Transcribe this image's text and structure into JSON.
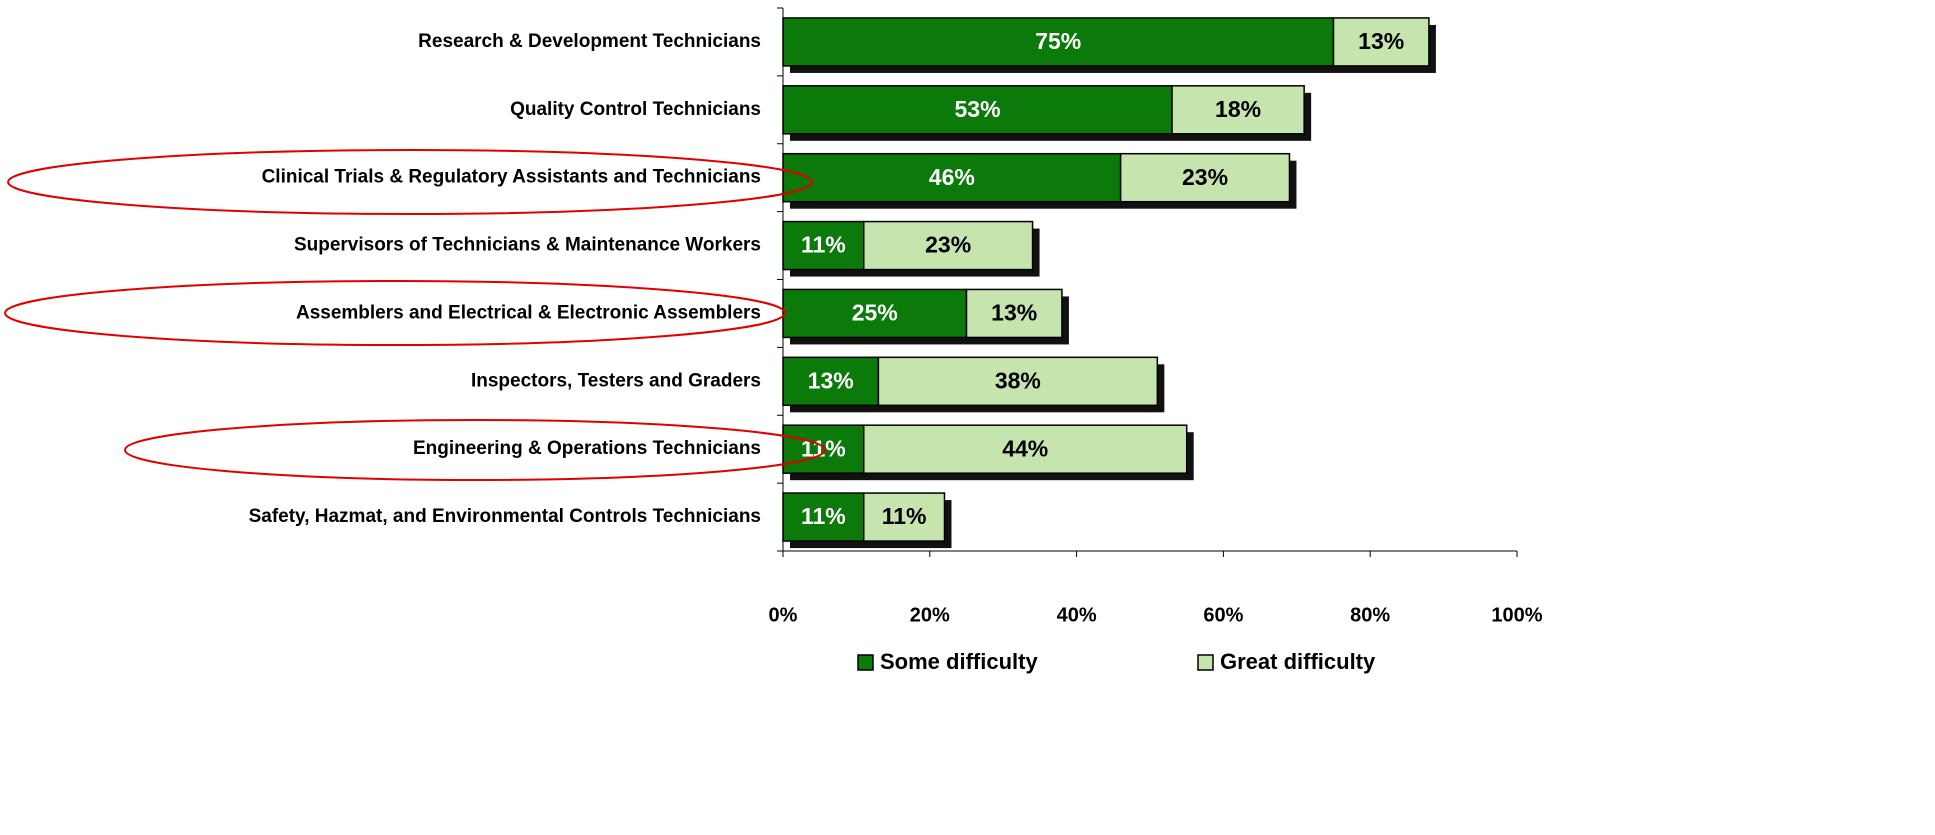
{
  "chart_data": {
    "type": "stacked-bar-horizontal",
    "categories": [
      "Research & Development Technicians",
      "Quality Control Technicians",
      "Clinical Trials & Regulatory Assistants and Technicians",
      "Supervisors of Technicians & Maintenance Workers",
      "Assemblers and Electrical & Electronic Assemblers",
      "Inspectors, Testers and Graders",
      "Engineering & Operations Technicians",
      "Safety, Hazmat, and Environmental Controls Technicians"
    ],
    "series": [
      {
        "name": "Some difficulty",
        "color": "#0b7a0b",
        "values": [
          75,
          53,
          46,
          11,
          25,
          13,
          11,
          11
        ],
        "value_labels": [
          "75%",
          "53%",
          "46%",
          "11%",
          "25%",
          "13%",
          "11%",
          "11%"
        ]
      },
      {
        "name": "Great difficulty",
        "color": "#c6e4ae",
        "values": [
          13,
          18,
          23,
          23,
          13,
          38,
          44,
          11
        ],
        "value_labels": [
          "13%",
          "18%",
          "23%",
          "23%",
          "13%",
          "38%",
          "44%",
          "11%"
        ]
      }
    ],
    "xlim": [
      0,
      100
    ],
    "xticks": [
      {
        "value": 0,
        "label": "0%"
      },
      {
        "value": 20,
        "label": "20%"
      },
      {
        "value": 40,
        "label": "40%"
      },
      {
        "value": 60,
        "label": "60%"
      },
      {
        "value": 80,
        "label": "80%"
      },
      {
        "value": 100,
        "label": "100%"
      }
    ],
    "legend": "bottom"
  }
}
